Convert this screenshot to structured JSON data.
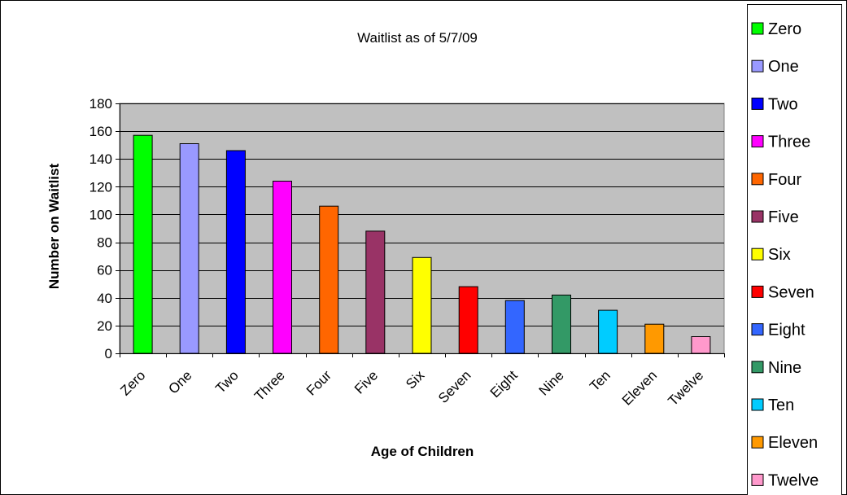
{
  "chart_data": {
    "type": "bar",
    "title": "Waitlist as of 5/7/09",
    "xlabel": "Age of Children",
    "ylabel": "Number on Waitlist",
    "ylim": [
      0,
      180
    ],
    "yticks": [
      0,
      20,
      40,
      60,
      80,
      100,
      120,
      140,
      160,
      180
    ],
    "grid": true,
    "legend_position": "right",
    "plot_background": "#c0c0c0",
    "categories": [
      "Zero",
      "One",
      "Two",
      "Three",
      "Four",
      "Five",
      "Six",
      "Seven",
      "Eight",
      "Nine",
      "Ten",
      "Eleven",
      "Twelve"
    ],
    "values": [
      157,
      151,
      146,
      124,
      106,
      88,
      69,
      48,
      38,
      42,
      31,
      21,
      12
    ],
    "colors": [
      "#00ff00",
      "#9999ff",
      "#0000ff",
      "#ff00ff",
      "#ff6600",
      "#993366",
      "#ffff00",
      "#ff0000",
      "#3366ff",
      "#339966",
      "#00ccff",
      "#ff9900",
      "#ff99cc"
    ],
    "legend": [
      "Zero",
      "One",
      "Two",
      "Three",
      "Four",
      "Five",
      "Six",
      "Seven",
      "Eight",
      "Nine",
      "Ten",
      "Eleven",
      "Twelve"
    ]
  }
}
